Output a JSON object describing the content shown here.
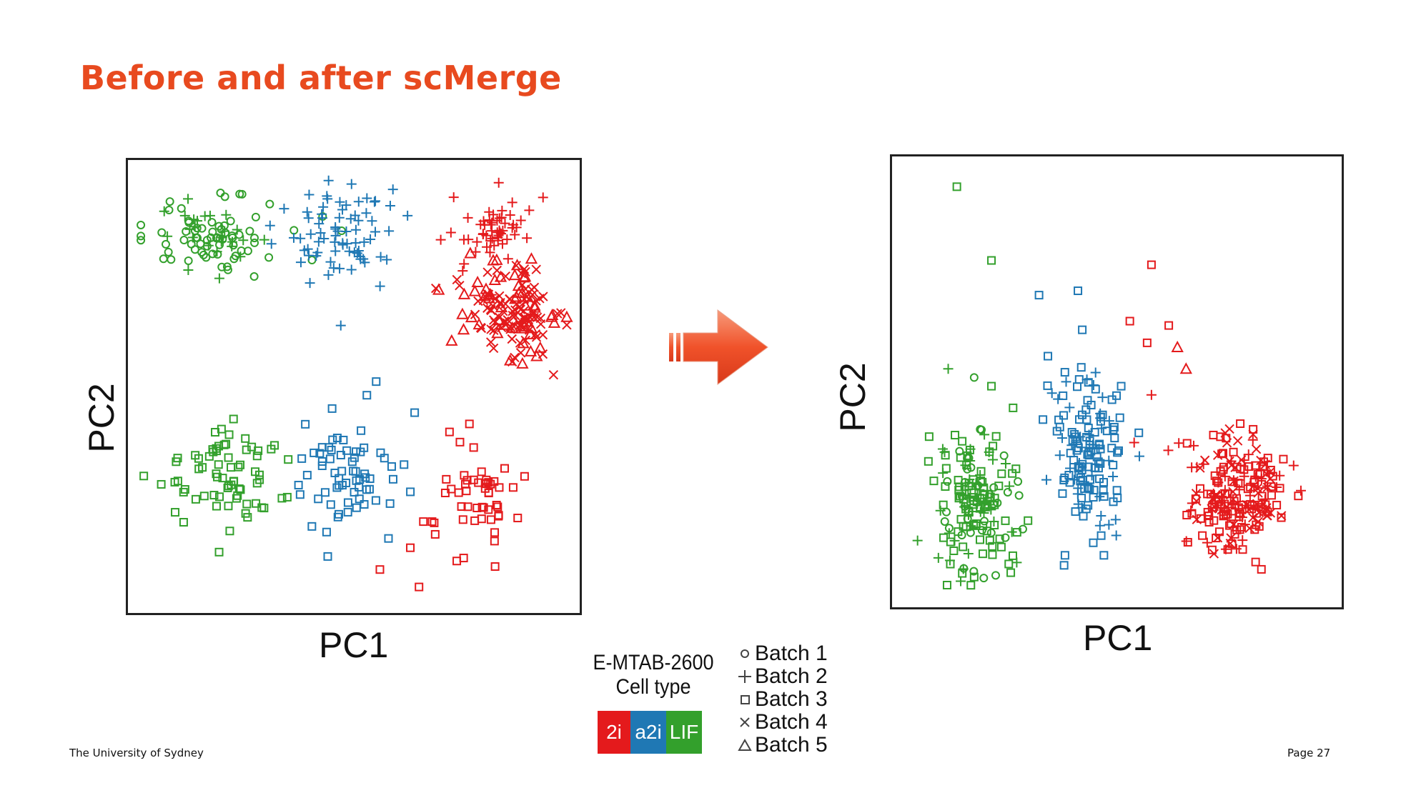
{
  "slide": {
    "title": "Before and after scMerge",
    "footer_left": "The University of Sydney",
    "footer_right": "Page 27",
    "accent_color": "#e84a1f"
  },
  "legend": {
    "dataset": "E-MTAB-2600",
    "cell_type_label": "Cell type",
    "cell_types": [
      {
        "label": "2i",
        "color": "#e41a1c"
      },
      {
        "label": "a2i",
        "color": "#1f78b4"
      },
      {
        "label": "LIF",
        "color": "#33a02c"
      }
    ],
    "batches": [
      {
        "label": "Batch 1",
        "shape": "circle"
      },
      {
        "label": "Batch 2",
        "shape": "plus"
      },
      {
        "label": "Batch 3",
        "shape": "square"
      },
      {
        "label": "Batch 4",
        "shape": "cross"
      },
      {
        "label": "Batch 5",
        "shape": "triangle"
      }
    ]
  },
  "arrow": {
    "icon": "right-arrow-icon",
    "color": "#f0522a"
  },
  "chart_data": [
    {
      "type": "scatter",
      "name": "before",
      "xlabel": "PC1",
      "ylabel": "PC2",
      "xlim": [
        0,
        100
      ],
      "ylim": [
        0,
        100
      ],
      "grid": false,
      "clusters": [
        {
          "celltype": "LIF",
          "color": "#33a02c",
          "cx": 18,
          "cy": 84,
          "sx": 7.5,
          "sy": 4.5,
          "n": 95,
          "batches": [
            "circle",
            "circle",
            "circle",
            "plus"
          ]
        },
        {
          "celltype": "a2i",
          "color": "#1f78b4",
          "cx": 48,
          "cy": 85,
          "sx": 7,
          "sy": 5,
          "n": 75,
          "batches": [
            "plus"
          ]
        },
        {
          "celltype": "2i",
          "color": "#e41a1c",
          "cx": 82,
          "cy": 86,
          "sx": 5,
          "sy": 3.5,
          "n": 55,
          "batches": [
            "plus"
          ]
        },
        {
          "celltype": "2i",
          "color": "#e41a1c",
          "cx": 87,
          "cy": 67,
          "sx": 5.5,
          "sy": 6,
          "n": 150,
          "batches": [
            "cross",
            "cross",
            "triangle"
          ]
        },
        {
          "celltype": "LIF",
          "color": "#33a02c",
          "cx": 20,
          "cy": 30,
          "sx": 7,
          "sy": 5.5,
          "n": 70,
          "batches": [
            "square"
          ]
        },
        {
          "celltype": "a2i",
          "color": "#1f78b4",
          "cx": 50,
          "cy": 30,
          "sx": 6,
          "sy": 6.5,
          "n": 65,
          "batches": [
            "square"
          ]
        },
        {
          "celltype": "2i",
          "color": "#e41a1c",
          "cx": 79,
          "cy": 24,
          "sx": 5,
          "sy": 6,
          "n": 50,
          "batches": [
            "square"
          ]
        }
      ],
      "outliers": [
        {
          "x": 47,
          "y": 64,
          "color": "#1f78b4",
          "shape": "plus"
        },
        {
          "x": 53,
          "y": 48,
          "color": "#1f78b4",
          "shape": "square"
        },
        {
          "x": 64,
          "y": 44,
          "color": "#1f78b4",
          "shape": "square"
        },
        {
          "x": 44,
          "y": 11,
          "color": "#1f78b4",
          "shape": "square"
        },
        {
          "x": 19,
          "y": 12,
          "color": "#33a02c",
          "shape": "square"
        },
        {
          "x": 56,
          "y": 8,
          "color": "#e41a1c",
          "shape": "square"
        },
        {
          "x": 65,
          "y": 4,
          "color": "#e41a1c",
          "shape": "square"
        },
        {
          "x": 63,
          "y": 13,
          "color": "#e41a1c",
          "shape": "square"
        },
        {
          "x": 66,
          "y": 19,
          "color": "#e41a1c",
          "shape": "square"
        },
        {
          "x": 68,
          "y": 19,
          "color": "#e41a1c",
          "shape": "square"
        }
      ]
    },
    {
      "type": "scatter",
      "name": "after",
      "xlabel": "PC1",
      "ylabel": "PC2",
      "xlim": [
        0,
        100
      ],
      "ylim": [
        0,
        100
      ],
      "grid": false,
      "clusters": [
        {
          "celltype": "LIF",
          "color": "#33a02c",
          "cx": 17,
          "cy": 22,
          "sx": 5,
          "sy": 8,
          "n": 160,
          "batches": [
            "circle",
            "plus",
            "square",
            "square"
          ]
        },
        {
          "celltype": "a2i",
          "color": "#1f78b4",
          "cx": 43,
          "cy": 34,
          "sx": 4.5,
          "sy": 9,
          "n": 140,
          "batches": [
            "square",
            "square",
            "plus"
          ]
        },
        {
          "celltype": "2i",
          "color": "#e41a1c",
          "cx": 78,
          "cy": 24,
          "sx": 5.5,
          "sy": 7,
          "n": 200,
          "batches": [
            "square",
            "square",
            "cross",
            "plus"
          ]
        }
      ],
      "outliers": [
        {
          "x": 13,
          "y": 95,
          "color": "#33a02c",
          "shape": "square"
        },
        {
          "x": 21,
          "y": 78,
          "color": "#33a02c",
          "shape": "square"
        },
        {
          "x": 32,
          "y": 70,
          "color": "#1f78b4",
          "shape": "square"
        },
        {
          "x": 41,
          "y": 71,
          "color": "#1f78b4",
          "shape": "square"
        },
        {
          "x": 42,
          "y": 62,
          "color": "#1f78b4",
          "shape": "square"
        },
        {
          "x": 58,
          "y": 77,
          "color": "#e41a1c",
          "shape": "square"
        },
        {
          "x": 53,
          "y": 64,
          "color": "#e41a1c",
          "shape": "square"
        },
        {
          "x": 57,
          "y": 59,
          "color": "#e41a1c",
          "shape": "square"
        },
        {
          "x": 62,
          "y": 63,
          "color": "#e41a1c",
          "shape": "square"
        },
        {
          "x": 64,
          "y": 58,
          "color": "#e41a1c",
          "shape": "triangle"
        },
        {
          "x": 66,
          "y": 53,
          "color": "#e41a1c",
          "shape": "triangle"
        },
        {
          "x": 58,
          "y": 47,
          "color": "#e41a1c",
          "shape": "plus"
        },
        {
          "x": 54,
          "y": 36,
          "color": "#e41a1c",
          "shape": "plus"
        },
        {
          "x": 11,
          "y": 53,
          "color": "#33a02c",
          "shape": "plus"
        },
        {
          "x": 17,
          "y": 51,
          "color": "#33a02c",
          "shape": "circle"
        },
        {
          "x": 21,
          "y": 49,
          "color": "#33a02c",
          "shape": "square"
        },
        {
          "x": 26,
          "y": 44,
          "color": "#33a02c",
          "shape": "square"
        },
        {
          "x": 51,
          "y": 49,
          "color": "#1f78b4",
          "shape": "square"
        },
        {
          "x": 47,
          "y": 10,
          "color": "#1f78b4",
          "shape": "square"
        },
        {
          "x": 38,
          "y": 10,
          "color": "#1f78b4",
          "shape": "square"
        },
        {
          "x": 25,
          "y": 8,
          "color": "#33a02c",
          "shape": "square"
        },
        {
          "x": 17,
          "y": 5,
          "color": "#33a02c",
          "shape": "square"
        }
      ]
    }
  ]
}
